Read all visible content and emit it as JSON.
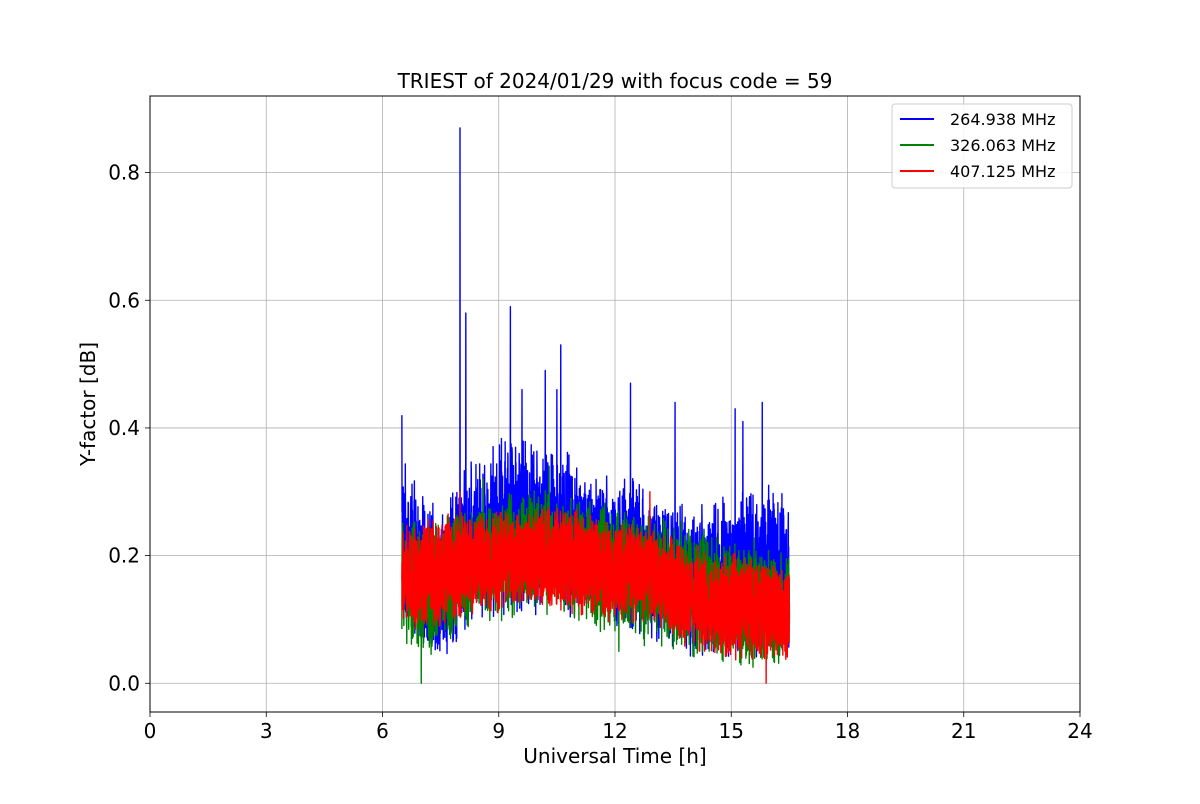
{
  "chart_data": {
    "type": "line",
    "title": "TRIEST of 2024/01/29 with focus code = 59",
    "xlabel": "Universal Time [h]",
    "ylabel": "Y-factor [dB]",
    "xlim": [
      0,
      24
    ],
    "ylim": [
      -0.045,
      0.92
    ],
    "xticks": [
      0,
      3,
      6,
      9,
      12,
      15,
      18,
      21,
      24
    ],
    "yticks": [
      0.0,
      0.2,
      0.4,
      0.6,
      0.8
    ],
    "xtick_labels": [
      "0",
      "3",
      "6",
      "9",
      "12",
      "15",
      "18",
      "21",
      "24"
    ],
    "ytick_labels": [
      "0.0",
      "0.2",
      "0.4",
      "0.6",
      "0.8"
    ],
    "grid": true,
    "legend_position": "top-right",
    "data_range_x": [
      6.5,
      16.5
    ],
    "series": [
      {
        "name": "264.938 MHz",
        "color": "#0000ff",
        "envelope": {
          "x": [
            6.5,
            7.0,
            7.5,
            8.0,
            8.5,
            9.0,
            9.5,
            10.0,
            10.5,
            11.0,
            11.5,
            12.0,
            12.5,
            13.0,
            13.5,
            14.0,
            14.5,
            15.0,
            15.5,
            16.0,
            16.5
          ],
          "min": [
            0.08,
            0.04,
            0.03,
            0.05,
            0.09,
            0.1,
            0.1,
            0.1,
            0.1,
            0.1,
            0.09,
            0.08,
            0.07,
            0.06,
            0.05,
            0.04,
            0.03,
            0.03,
            0.03,
            0.03,
            0.04
          ],
          "max": [
            0.36,
            0.3,
            0.27,
            0.34,
            0.36,
            0.4,
            0.42,
            0.38,
            0.38,
            0.36,
            0.34,
            0.33,
            0.34,
            0.3,
            0.3,
            0.28,
            0.3,
            0.3,
            0.33,
            0.33,
            0.28
          ]
        },
        "peaks": [
          {
            "x": 6.5,
            "y": 0.42
          },
          {
            "x": 8.0,
            "y": 0.87
          },
          {
            "x": 8.15,
            "y": 0.58
          },
          {
            "x": 9.3,
            "y": 0.59
          },
          {
            "x": 9.6,
            "y": 0.46
          },
          {
            "x": 10.2,
            "y": 0.49
          },
          {
            "x": 10.5,
            "y": 0.46
          },
          {
            "x": 10.6,
            "y": 0.53
          },
          {
            "x": 12.4,
            "y": 0.47
          },
          {
            "x": 13.55,
            "y": 0.44
          },
          {
            "x": 15.1,
            "y": 0.43
          },
          {
            "x": 15.3,
            "y": 0.41
          },
          {
            "x": 15.8,
            "y": 0.44
          }
        ]
      },
      {
        "name": "326.063 MHz",
        "color": "#008000",
        "envelope": {
          "x": [
            6.5,
            7.0,
            7.5,
            8.0,
            8.5,
            9.0,
            9.5,
            10.0,
            10.5,
            11.0,
            11.5,
            12.0,
            12.5,
            13.0,
            13.5,
            14.0,
            14.5,
            15.0,
            15.5,
            16.0,
            16.5
          ],
          "min": [
            0.06,
            0.03,
            0.05,
            0.07,
            0.09,
            0.09,
            0.1,
            0.1,
            0.1,
            0.09,
            0.08,
            0.07,
            0.06,
            0.05,
            0.04,
            0.03,
            0.02,
            0.02,
            0.02,
            0.02,
            0.03
          ],
          "max": [
            0.26,
            0.26,
            0.27,
            0.28,
            0.29,
            0.3,
            0.31,
            0.31,
            0.3,
            0.3,
            0.29,
            0.28,
            0.28,
            0.27,
            0.26,
            0.25,
            0.24,
            0.23,
            0.23,
            0.22,
            0.21
          ]
        },
        "peaks": [
          {
            "x": 7.0,
            "y": 0.0
          },
          {
            "x": 8.6,
            "y": 0.32
          },
          {
            "x": 10.3,
            "y": 0.34
          },
          {
            "x": 12.1,
            "y": 0.05
          }
        ]
      },
      {
        "name": "407.125 MHz",
        "color": "#ff0000",
        "envelope": {
          "x": [
            6.5,
            7.0,
            7.5,
            8.0,
            8.5,
            9.0,
            9.5,
            10.0,
            10.5,
            11.0,
            11.5,
            12.0,
            12.5,
            13.0,
            13.5,
            14.0,
            14.5,
            15.0,
            15.5,
            16.0,
            16.5
          ],
          "min": [
            0.08,
            0.08,
            0.08,
            0.09,
            0.1,
            0.1,
            0.11,
            0.11,
            0.11,
            0.1,
            0.1,
            0.09,
            0.09,
            0.08,
            0.06,
            0.05,
            0.04,
            0.03,
            0.03,
            0.03,
            0.03
          ],
          "max": [
            0.25,
            0.26,
            0.27,
            0.27,
            0.28,
            0.28,
            0.28,
            0.28,
            0.28,
            0.28,
            0.27,
            0.26,
            0.26,
            0.25,
            0.23,
            0.22,
            0.21,
            0.21,
            0.21,
            0.2,
            0.19
          ]
        },
        "peaks": [
          {
            "x": 8.0,
            "y": 0.3
          },
          {
            "x": 12.9,
            "y": 0.3
          },
          {
            "x": 15.9,
            "y": 0.0
          }
        ]
      }
    ]
  }
}
